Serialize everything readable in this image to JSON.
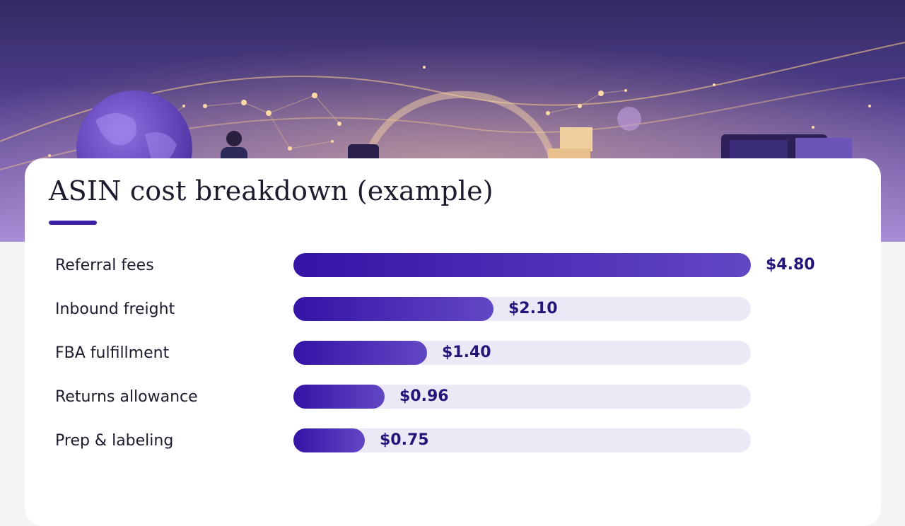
{
  "colors": {
    "accent": "#3a1fa8",
    "bar_start": "#3413a6",
    "bar_end": "#6247c4",
    "track": "#ece9f7",
    "value_text": "#23157a",
    "banner_top": "#352a63",
    "banner_bottom": "#a98fd6"
  },
  "chart_data": {
    "type": "bar",
    "orientation": "horizontal",
    "title": "ASIN cost breakdown (example)",
    "xlabel": "",
    "ylabel": "",
    "xlim": [
      0,
      4.8
    ],
    "grid": false,
    "categories": [
      "Referral fees",
      "Inbound freight",
      "FBA fulfillment",
      "Returns allowance",
      "Prep & labeling"
    ],
    "values": [
      4.8,
      2.1,
      1.4,
      0.96,
      0.75
    ],
    "value_labels": [
      "$4.80",
      "$2.10",
      "$1.40",
      "$0.96",
      "$0.75"
    ]
  }
}
